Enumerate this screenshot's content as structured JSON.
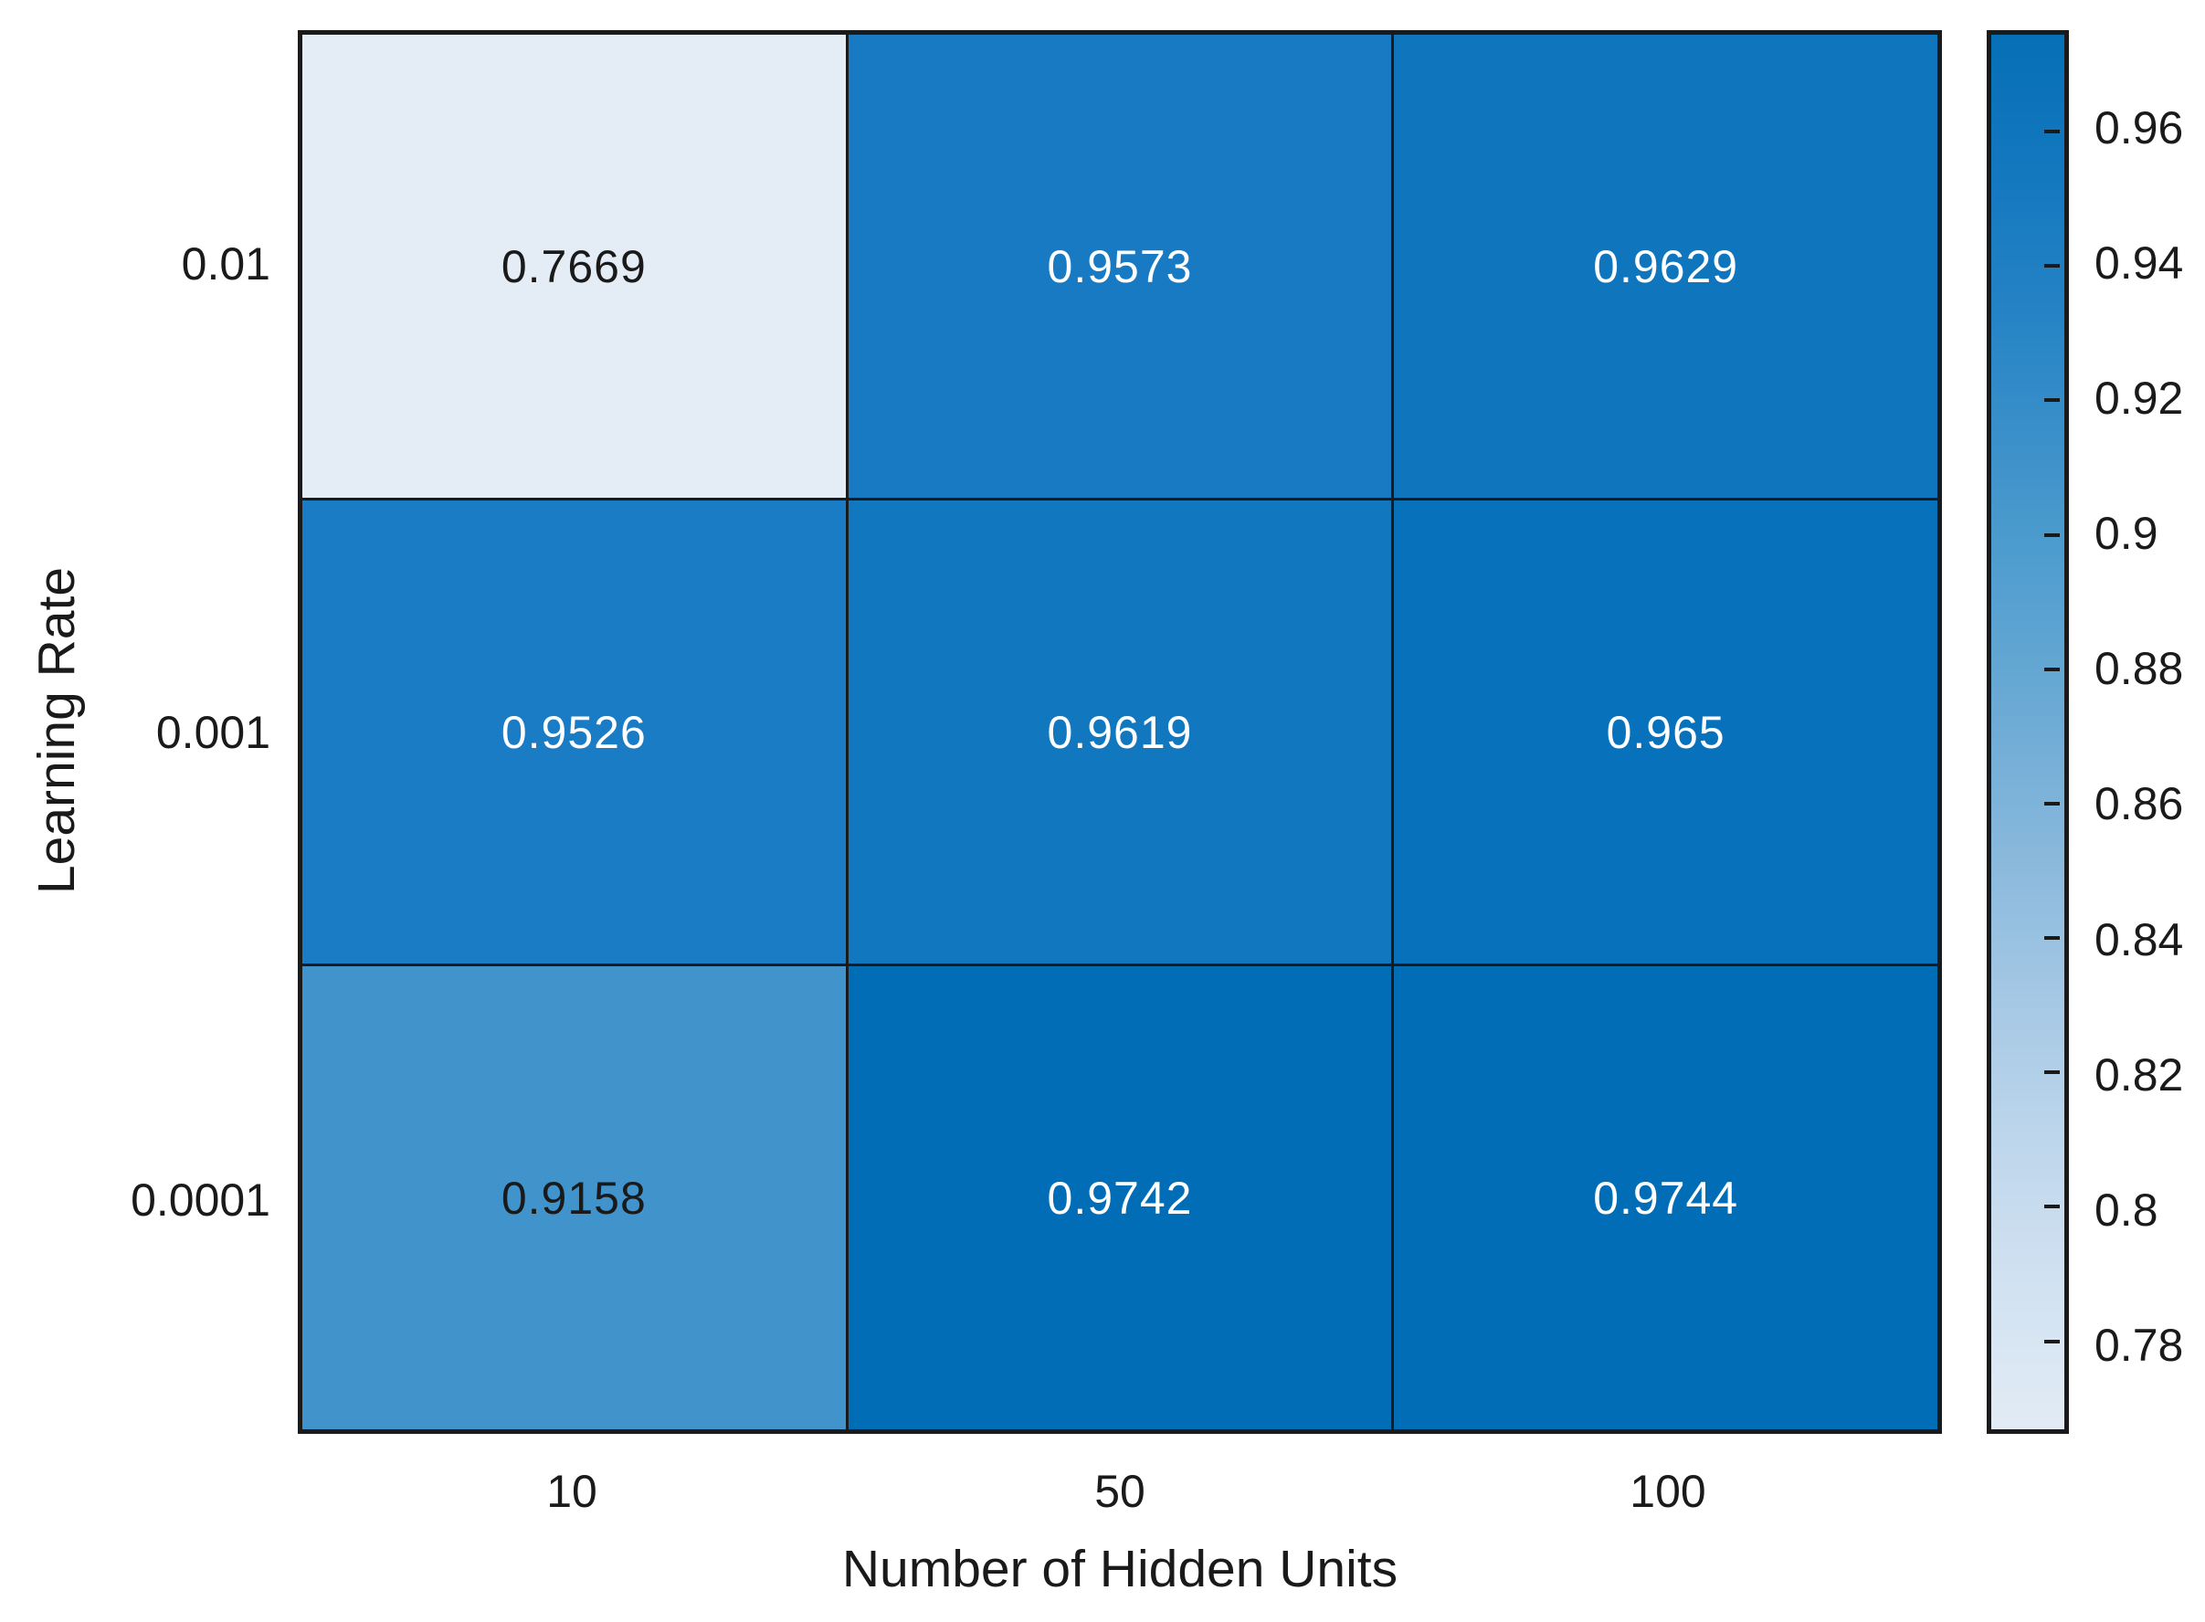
{
  "figure": {
    "background": "#ffffff",
    "text_color": "#1a1a1a",
    "grid_line_color": "#1a1a1a"
  },
  "chart_data": {
    "type": "heatmap",
    "title": "",
    "xlabel": "Number of Hidden Units",
    "ylabel": "Learning Rate",
    "x_categories": [
      "10",
      "50",
      "100"
    ],
    "y_categories": [
      "0.01",
      "0.001",
      "0.0001"
    ],
    "values": [
      [
        0.7669,
        0.9573,
        0.9629
      ],
      [
        0.9526,
        0.9619,
        0.965
      ],
      [
        0.9158,
        0.9742,
        0.9744
      ]
    ],
    "cells": [
      {
        "row": "0.01",
        "col": "10",
        "label": "0.7669",
        "color": "#E4EDF6",
        "text_color": "#1a1a1a"
      },
      {
        "row": "0.01",
        "col": "50",
        "label": "0.9573",
        "color": "#177AC2",
        "text_color": "#ffffff"
      },
      {
        "row": "0.01",
        "col": "100",
        "label": "0.9629",
        "color": "#0F76BE",
        "text_color": "#ffffff"
      },
      {
        "row": "0.001",
        "col": "10",
        "label": "0.9526",
        "color": "#1A7CC4",
        "text_color": "#ffffff"
      },
      {
        "row": "0.001",
        "col": "50",
        "label": "0.9619",
        "color": "#1177BF",
        "text_color": "#ffffff"
      },
      {
        "row": "0.001",
        "col": "100",
        "label": "0.965",
        "color": "#0871BC",
        "text_color": "#ffffff"
      },
      {
        "row": "0.0001",
        "col": "10",
        "label": "0.9158",
        "color": "#4194CB",
        "text_color": "#1a1a1a"
      },
      {
        "row": "0.0001",
        "col": "50",
        "label": "0.9742",
        "color": "#016DB7",
        "text_color": "#ffffff"
      },
      {
        "row": "0.0001",
        "col": "100",
        "label": "0.9744",
        "color": "#006DB6",
        "text_color": "#ffffff"
      }
    ],
    "color_scale": {
      "colormap": "blues",
      "vmin": 0.7669,
      "vmax": 0.9744,
      "high_color": "#066FB5",
      "low_color": "#E2EBF5"
    },
    "colorbar": {
      "position": "right",
      "tick_labels": [
        "0.96",
        "0.94",
        "0.92",
        "0.9",
        "0.88",
        "0.86",
        "0.84",
        "0.82",
        "0.8",
        "0.78"
      ],
      "tick_values": [
        0.96,
        0.94,
        0.92,
        0.9,
        0.88,
        0.86,
        0.84,
        0.82,
        0.8,
        0.78
      ]
    },
    "layout_hints": {
      "grid": "on",
      "legend": "none",
      "cell_text": "values printed in each cell"
    }
  }
}
